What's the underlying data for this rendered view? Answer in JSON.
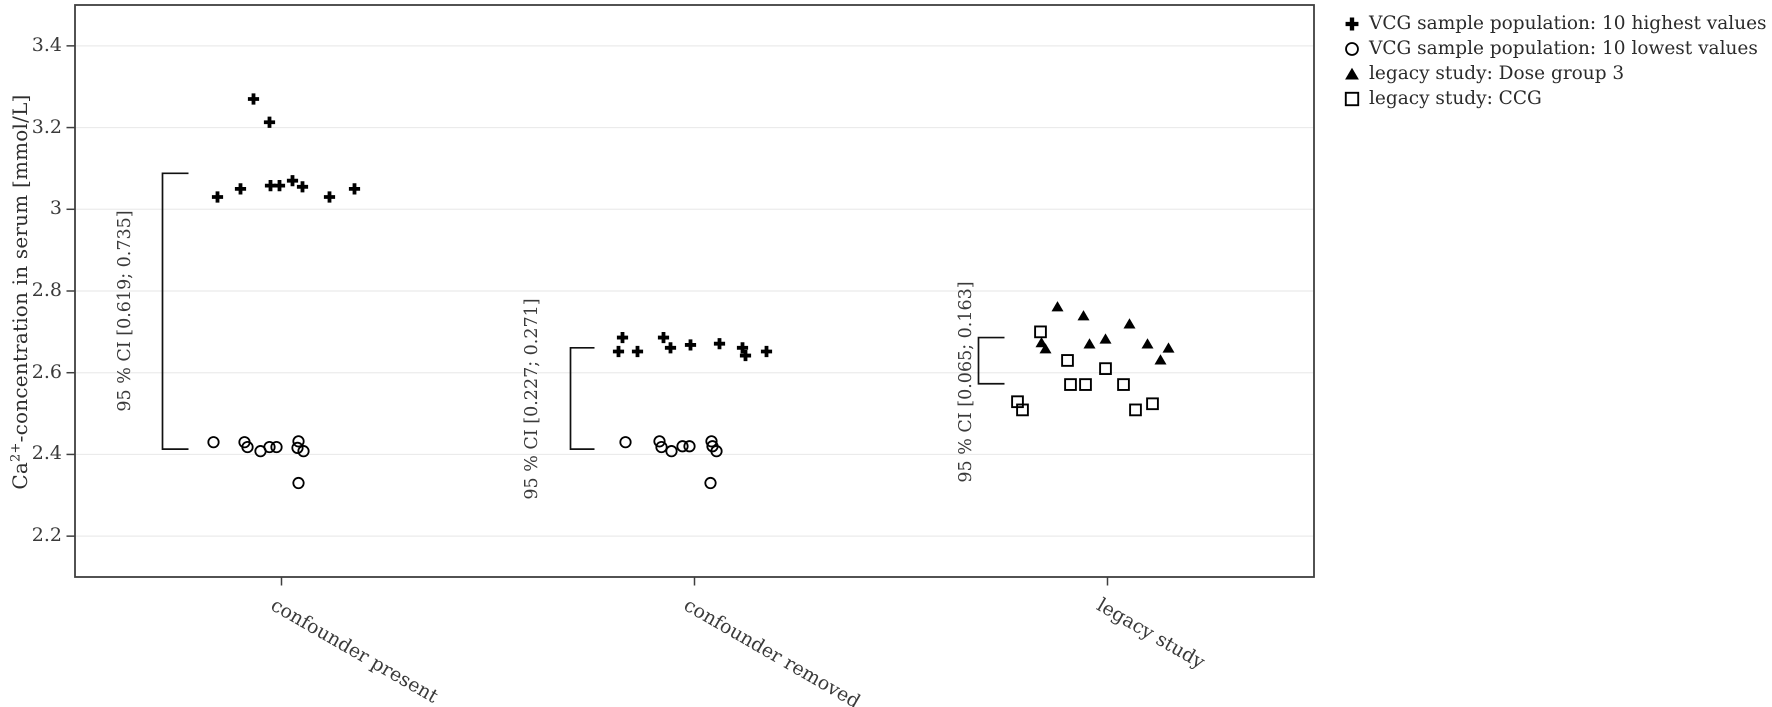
{
  "figure": {
    "background": "#ffffff",
    "text_color": "#3a3a3a",
    "marker_color": "#000000",
    "axis_border_color": "#3f3f3f",
    "gridline_color": "#ebebeb"
  },
  "chart_data": {
    "type": "scatter",
    "title": "",
    "xlabel": "",
    "ylabel": {
      "prefix": "Ca",
      "sup": "2+",
      "suffix": "-concentration in serum [mmol/L]"
    },
    "ylim": [
      2.1,
      3.5
    ],
    "grid": "horizontal",
    "legend_position": "outside-top-right",
    "yticks": [
      {
        "value": 3.4,
        "label": "3.4"
      },
      {
        "value": 3.2,
        "label": "3.2"
      },
      {
        "value": 3.0,
        "label": "3"
      },
      {
        "value": 2.8,
        "label": "2.8"
      },
      {
        "value": 2.6,
        "label": "2.6"
      },
      {
        "value": 2.4,
        "label": "2.4"
      },
      {
        "value": 2.2,
        "label": "2.2"
      }
    ],
    "categories": [
      "confounder present",
      "confounder removed",
      "legacy study"
    ],
    "series": [
      {
        "name": "VCG sample population: 10 highest values",
        "marker": "heavy-plus",
        "points": [
          {
            "g": 0,
            "dx": -28,
            "y": 3.27
          },
          {
            "g": 0,
            "dx": -12,
            "y": 3.213
          },
          {
            "g": 0,
            "dx": -64,
            "y": 3.03
          },
          {
            "g": 0,
            "dx": -41,
            "y": 3.05
          },
          {
            "g": 0,
            "dx": -11,
            "y": 3.058
          },
          {
            "g": 0,
            "dx": -2,
            "y": 3.058
          },
          {
            "g": 0,
            "dx": 11,
            "y": 3.07
          },
          {
            "g": 0,
            "dx": 21,
            "y": 3.055
          },
          {
            "g": 0,
            "dx": 48,
            "y": 3.03
          },
          {
            "g": 0,
            "dx": 73,
            "y": 3.05
          },
          {
            "g": 1,
            "dx": -76,
            "y": 2.652
          },
          {
            "g": 1,
            "dx": -72,
            "y": 2.686
          },
          {
            "g": 1,
            "dx": -57,
            "y": 2.652
          },
          {
            "g": 1,
            "dx": -31,
            "y": 2.686
          },
          {
            "g": 1,
            "dx": -24,
            "y": 2.661
          },
          {
            "g": 1,
            "dx": -4,
            "y": 2.668
          },
          {
            "g": 1,
            "dx": 25,
            "y": 2.671
          },
          {
            "g": 1,
            "dx": 48,
            "y": 2.661
          },
          {
            "g": 1,
            "dx": 51,
            "y": 2.642
          },
          {
            "g": 1,
            "dx": 72,
            "y": 2.652
          }
        ]
      },
      {
        "name": "VCG sample population: 10 lowest values",
        "marker": "open-circle",
        "points": [
          {
            "g": 0,
            "dx": -68,
            "y": 2.43
          },
          {
            "g": 0,
            "dx": -37,
            "y": 2.43
          },
          {
            "g": 0,
            "dx": -34,
            "y": 2.418
          },
          {
            "g": 0,
            "dx": -21,
            "y": 2.408
          },
          {
            "g": 0,
            "dx": -12,
            "y": 2.418
          },
          {
            "g": 0,
            "dx": -5,
            "y": 2.418
          },
          {
            "g": 0,
            "dx": 16,
            "y": 2.416
          },
          {
            "g": 0,
            "dx": 17,
            "y": 2.432
          },
          {
            "g": 0,
            "dx": 22,
            "y": 2.408
          },
          {
            "g": 0,
            "dx": 17,
            "y": 2.33
          },
          {
            "g": 1,
            "dx": -69,
            "y": 2.43
          },
          {
            "g": 1,
            "dx": -35,
            "y": 2.432
          },
          {
            "g": 1,
            "dx": -33,
            "y": 2.418
          },
          {
            "g": 1,
            "dx": -23,
            "y": 2.408
          },
          {
            "g": 1,
            "dx": -12,
            "y": 2.42
          },
          {
            "g": 1,
            "dx": -5,
            "y": 2.42
          },
          {
            "g": 1,
            "dx": 17,
            "y": 2.432
          },
          {
            "g": 1,
            "dx": 18,
            "y": 2.42
          },
          {
            "g": 1,
            "dx": 22,
            "y": 2.408
          },
          {
            "g": 1,
            "dx": 16,
            "y": 2.33
          }
        ]
      },
      {
        "name": "legacy study: Dose group 3",
        "marker": "filled-triangle",
        "points": [
          {
            "g": 2,
            "dx": -50,
            "y": 2.762
          },
          {
            "g": 2,
            "dx": -24,
            "y": 2.74
          },
          {
            "g": 2,
            "dx": 22,
            "y": 2.72
          },
          {
            "g": 2,
            "dx": -66,
            "y": 2.674
          },
          {
            "g": 2,
            "dx": -62,
            "y": 2.659
          },
          {
            "g": 2,
            "dx": -18,
            "y": 2.671
          },
          {
            "g": 2,
            "dx": -2,
            "y": 2.683
          },
          {
            "g": 2,
            "dx": 40,
            "y": 2.671
          },
          {
            "g": 2,
            "dx": 61,
            "y": 2.661
          },
          {
            "g": 2,
            "dx": 53,
            "y": 2.632
          }
        ]
      },
      {
        "name": "legacy study: CCG",
        "marker": "open-square",
        "points": [
          {
            "g": 2,
            "dx": -67,
            "y": 2.7
          },
          {
            "g": 2,
            "dx": -40,
            "y": 2.63
          },
          {
            "g": 2,
            "dx": -2,
            "y": 2.61
          },
          {
            "g": 2,
            "dx": -37,
            "y": 2.571
          },
          {
            "g": 2,
            "dx": -22,
            "y": 2.571
          },
          {
            "g": 2,
            "dx": 16,
            "y": 2.571
          },
          {
            "g": 2,
            "dx": -90,
            "y": 2.529
          },
          {
            "g": 2,
            "dx": -85,
            "y": 2.509
          },
          {
            "g": 2,
            "dx": 28,
            "y": 2.509
          },
          {
            "g": 2,
            "dx": 45,
            "y": 2.524
          }
        ]
      }
    ],
    "ci_brackets": [
      {
        "group": 0,
        "label": "95 % CI [0.619; 0.735]",
        "top": 3.088,
        "bottom": 2.413,
        "bar_dx": -119,
        "arm_len": 26,
        "label_dx": -157,
        "label_cy": 311
      },
      {
        "group": 1,
        "label": "95 % CI [0.227; 0.271]",
        "top": 2.661,
        "bottom": 2.413,
        "bar_dx": -124,
        "arm_len": 24,
        "label_dx": -163,
        "label_cy": 399
      },
      {
        "group": 2,
        "label": "95 % CI [0.065; 0.163]",
        "top": 2.686,
        "bottom": 2.573,
        "bar_dx": -129,
        "arm_len": 26,
        "label_dx": -142,
        "label_cy": 382
      }
    ]
  }
}
